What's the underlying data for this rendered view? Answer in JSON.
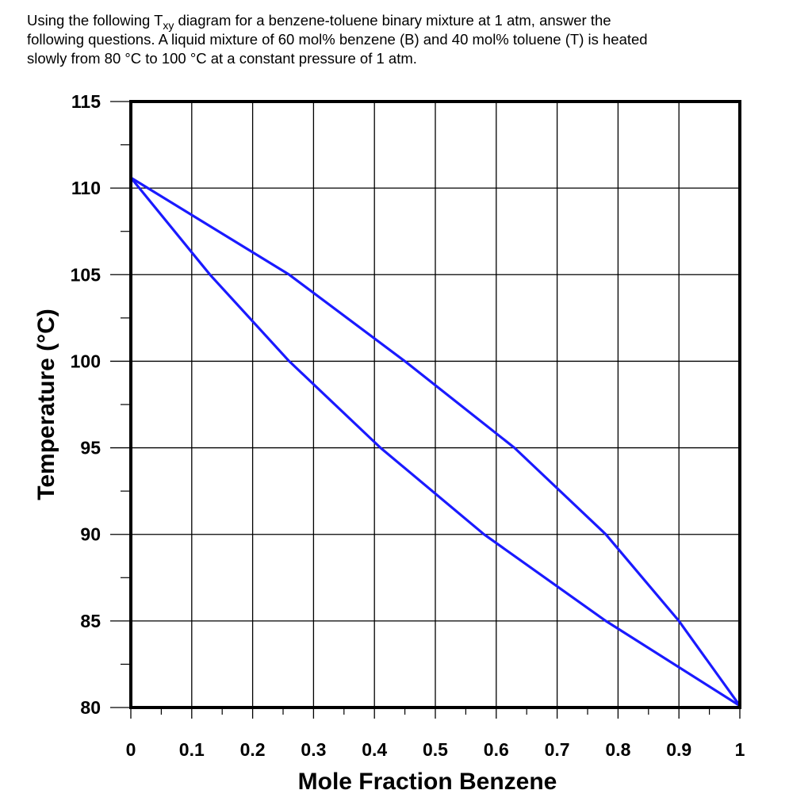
{
  "question": {
    "line1_pre": "Using the following T",
    "line1_sub": "xy",
    "line1_post": " diagram for a benzene-toluene binary mixture at 1 atm, answer the",
    "line2": "following questions. A liquid mixture of 60 mol% benzene (B) and 40 mol% toluene (T) is heated",
    "line3": "slowly from 80 °C to 100 °C at a constant pressure of 1 atm."
  },
  "chart_data": {
    "type": "line",
    "title": "",
    "xlabel": "Mole Fraction Benzene",
    "ylabel": "Temperature (°C)",
    "xlim": [
      0,
      1
    ],
    "ylim": [
      80,
      115
    ],
    "xticks": [
      "0",
      "0.1",
      "0.2",
      "0.3",
      "0.4",
      "0.5",
      "0.6",
      "0.7",
      "0.8",
      "0.9",
      "1"
    ],
    "yticks": [
      "80",
      "85",
      "90",
      "95",
      "100",
      "105",
      "110",
      "115"
    ],
    "grid": true,
    "line_color": "#1a1aff",
    "series": [
      {
        "x": [
          0,
          0.13,
          0.26,
          0.41,
          0.58,
          0.78,
          1.0
        ],
        "y": [
          110.6,
          105,
          100,
          95,
          90,
          85,
          80.1
        ]
      },
      {
        "x": [
          0,
          0.26,
          0.45,
          0.63,
          0.78,
          0.9,
          1.0
        ],
        "y": [
          110.6,
          105,
          100,
          95,
          90,
          85,
          80.1
        ]
      }
    ]
  }
}
